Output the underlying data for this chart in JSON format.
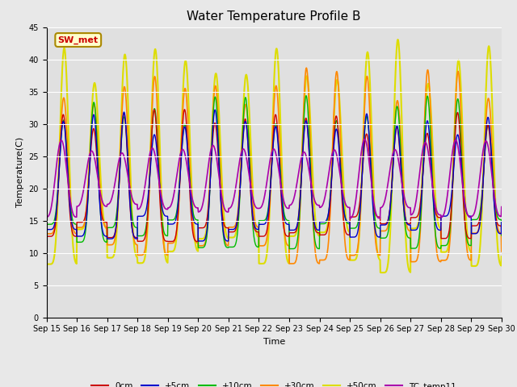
{
  "title": "Water Temperature Profile B",
  "xlabel": "Time",
  "ylabel": "Temperature(C)",
  "ylim": [
    0,
    45
  ],
  "yticks": [
    0,
    5,
    10,
    15,
    20,
    25,
    30,
    35,
    40,
    45
  ],
  "series": {
    "0cm": {
      "color": "#cc0000",
      "lw": 1.0
    },
    "+5cm": {
      "color": "#0000cc",
      "lw": 1.0
    },
    "+10cm": {
      "color": "#00bb00",
      "lw": 1.0
    },
    "+30cm": {
      "color": "#ff8800",
      "lw": 1.2
    },
    "+50cm": {
      "color": "#dddd00",
      "lw": 1.5
    },
    "TC_temp11": {
      "color": "#aa00aa",
      "lw": 1.2
    }
  },
  "annotation_text": "SW_met",
  "annotation_color": "#cc0000",
  "annotation_bg": "#ffffcc",
  "annotation_border": "#aa8800",
  "n_points": 1440,
  "background_outer": "#e8e8e8",
  "background_inner": "#e0e0e0",
  "grid_color": "#ffffff",
  "title_fontsize": 11,
  "tick_fontsize": 7,
  "label_fontsize": 8
}
